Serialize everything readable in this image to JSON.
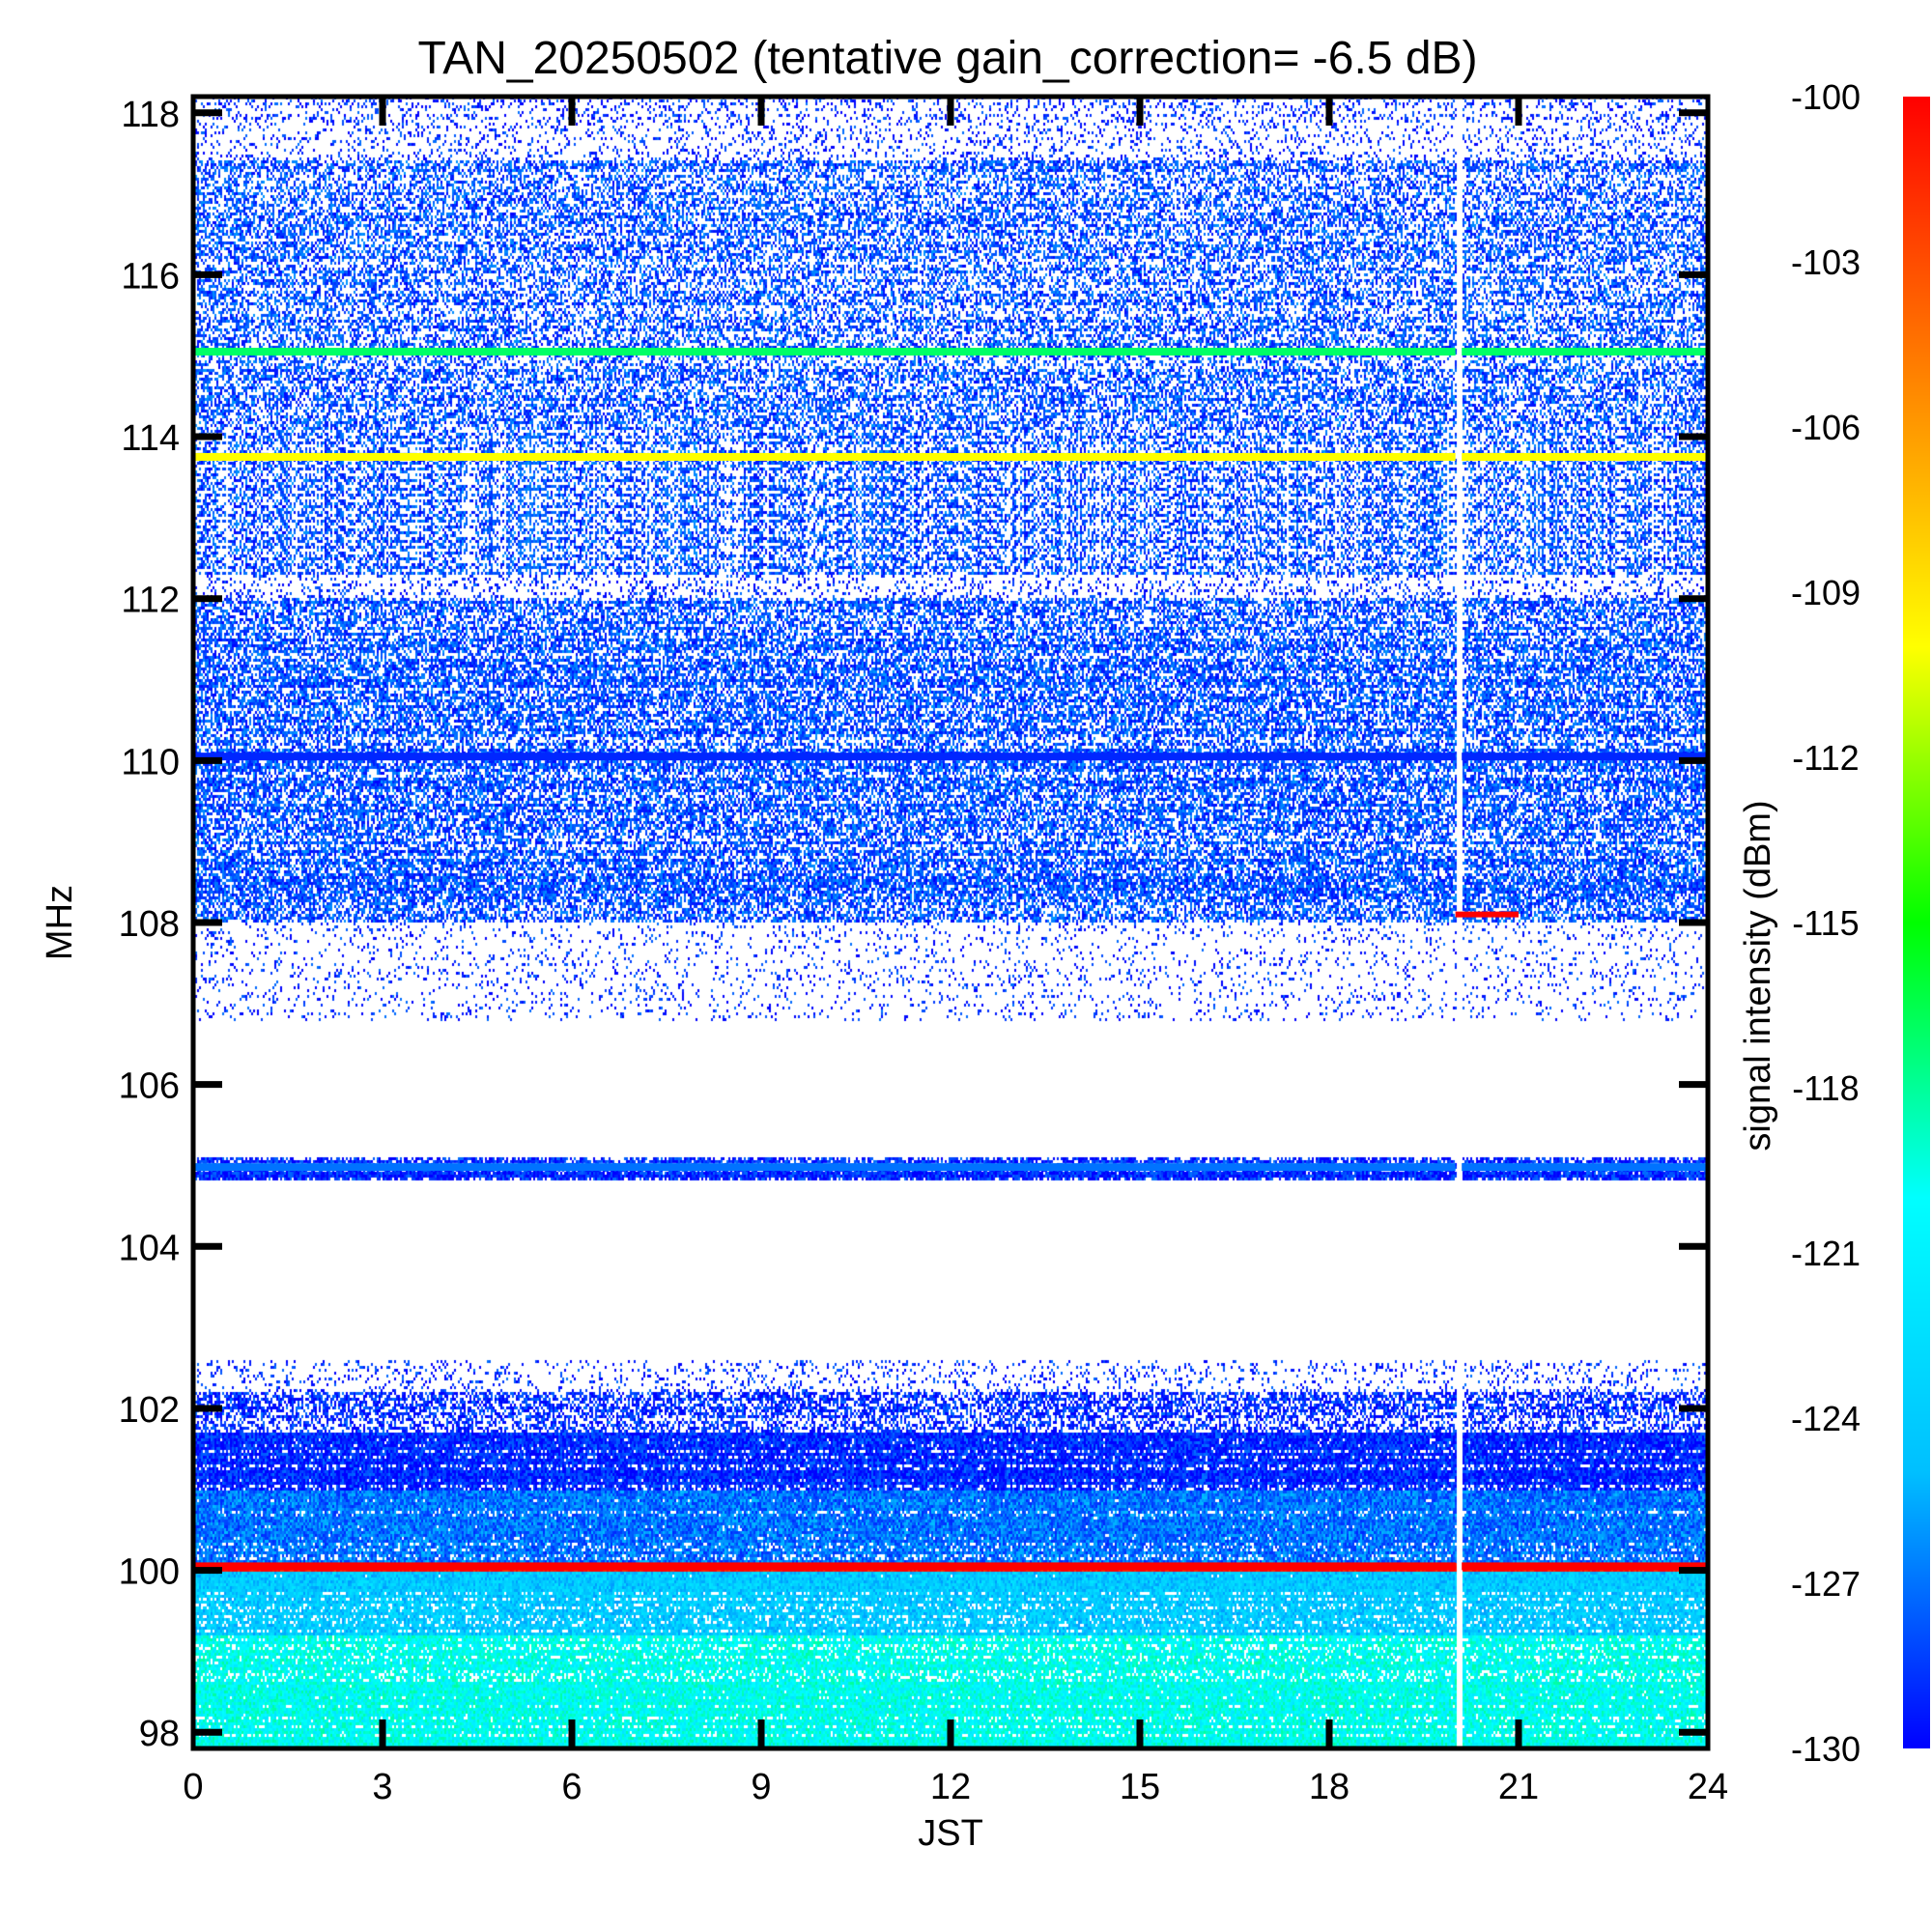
{
  "chart_data": {
    "type": "heatmap",
    "title": "TAN_20250502 (tentative gain_correction= -6.5 dB)",
    "xlabel": "JST",
    "ylabel": "MHz",
    "xlim": [
      0,
      24
    ],
    "ylim": [
      97.8,
      118.2
    ],
    "x_ticks": [
      "0",
      "3",
      "6",
      "9",
      "12",
      "15",
      "18",
      "21",
      "24"
    ],
    "y_ticks": [
      "98",
      "100",
      "102",
      "104",
      "106",
      "108",
      "110",
      "112",
      "114",
      "116",
      "118"
    ],
    "colorbar": {
      "label": "signal intensity (dBm)",
      "range": [
        -130,
        -100
      ],
      "ticks": [
        "-100",
        "-103",
        "-106",
        "-109",
        "-112",
        "-115",
        "-118",
        "-121",
        "-124",
        "-127",
        "-130"
      ],
      "colormap": [
        "#0000ff",
        "#00bfff",
        "#00ffff",
        "#00ff00",
        "#ffff00",
        "#ff8000",
        "#ff0000"
      ]
    },
    "bands": [
      {
        "f_min": 97.8,
        "f_max": 99.2,
        "level_dBm": -120,
        "fill": 1.0
      },
      {
        "f_min": 99.2,
        "f_max": 100.0,
        "level_dBm": -124,
        "fill": 1.0
      },
      {
        "f_min": 100.0,
        "f_max": 100.1,
        "level_dBm": -100,
        "fill": 1.0
      },
      {
        "f_min": 100.1,
        "f_max": 101.0,
        "level_dBm": -127,
        "fill": 1.0
      },
      {
        "f_min": 101.0,
        "f_max": 101.7,
        "level_dBm": -129,
        "fill": 0.95
      },
      {
        "f_min": 101.7,
        "f_max": 102.2,
        "level_dBm": -129,
        "fill": 0.55
      },
      {
        "f_min": 102.2,
        "f_max": 102.6,
        "level_dBm": -129,
        "fill": 0.15
      },
      {
        "f_min": 104.8,
        "f_max": 105.1,
        "level_dBm": -129,
        "fill": 0.85
      },
      {
        "f_min": 106.8,
        "f_max": 108.0,
        "level_dBm": -129,
        "fill": 0.1
      },
      {
        "f_min": 108.0,
        "f_max": 112.0,
        "level_dBm": -128,
        "fill": 0.62
      },
      {
        "f_min": 112.0,
        "f_max": 112.3,
        "level_dBm": -129,
        "fill": 0.2
      },
      {
        "f_min": 112.3,
        "f_max": 117.4,
        "level_dBm": -128,
        "fill": 0.5
      },
      {
        "f_min": 117.4,
        "f_max": 118.2,
        "level_dBm": -129,
        "fill": 0.2
      }
    ],
    "carriers": [
      {
        "freq": 100.05,
        "level_dBm": -100
      },
      {
        "freq": 113.75,
        "level_dBm": -110
      },
      {
        "freq": 115.05,
        "level_dBm": -117
      },
      {
        "freq": 110.05,
        "level_dBm": -129
      },
      {
        "freq": 104.98,
        "level_dBm": -127
      }
    ],
    "data_gap": {
      "t_start": 20.0,
      "t_end": 20.1
    },
    "bursts": [
      {
        "t_start": 20.0,
        "t_end": 21.0,
        "freq": 108.1,
        "level_dBm": -100
      }
    ]
  }
}
